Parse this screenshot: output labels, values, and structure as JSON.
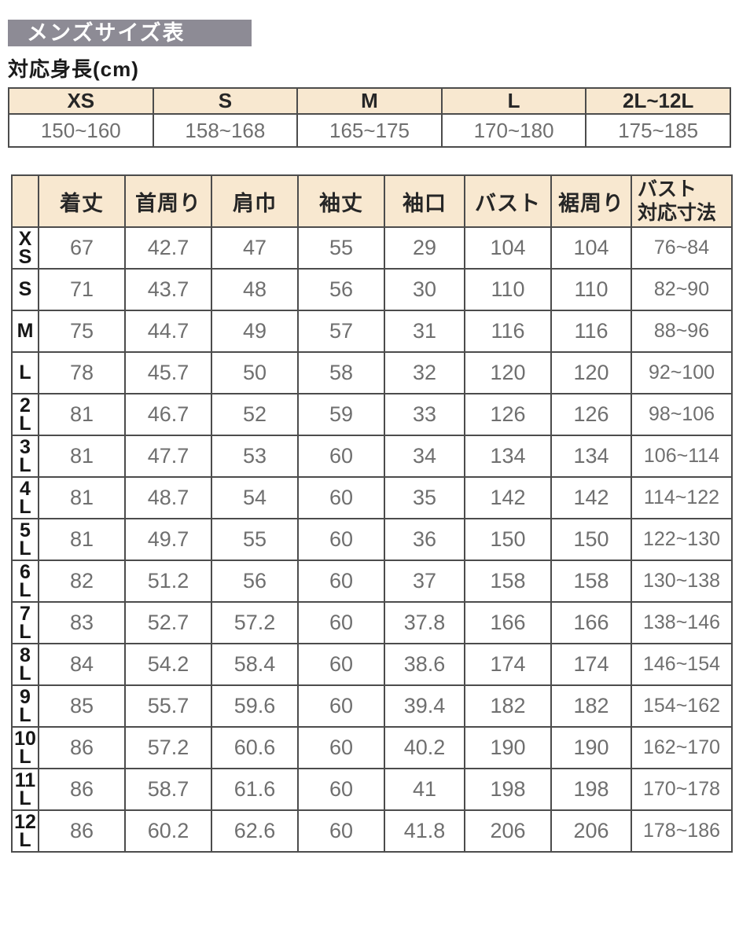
{
  "title_bar": {
    "label": "メンズサイズ表"
  },
  "height_section": {
    "label": "対応身長(cm)",
    "table": {
      "columns": [
        "XS",
        "S",
        "M",
        "L",
        "2L~12L"
      ],
      "heights": [
        "150~160",
        "158~168",
        "165~175",
        "170~180",
        "175~185"
      ]
    }
  },
  "size_table": {
    "columns": [
      "着丈",
      "首周り",
      "肩巾",
      "袖丈",
      "袖口",
      "バスト",
      "裾周り",
      "バスト\n対応寸法"
    ],
    "column_keys": [
      "body-length",
      "neck-girth",
      "shoulder-width",
      "sleeve-length",
      "cuff",
      "bust",
      "hem-girth",
      "bust-fit-range"
    ],
    "rows": [
      {
        "label": "XS",
        "label_lines": [
          "X",
          "S"
        ],
        "values": [
          "67",
          "42.7",
          "47",
          "55",
          "29",
          "104",
          "104",
          "76~84"
        ]
      },
      {
        "label": "S",
        "label_lines": [
          "S"
        ],
        "values": [
          "71",
          "43.7",
          "48",
          "56",
          "30",
          "110",
          "110",
          "82~90"
        ]
      },
      {
        "label": "M",
        "label_lines": [
          "M"
        ],
        "values": [
          "75",
          "44.7",
          "49",
          "57",
          "31",
          "116",
          "116",
          "88~96"
        ]
      },
      {
        "label": "L",
        "label_lines": [
          "L"
        ],
        "values": [
          "78",
          "45.7",
          "50",
          "58",
          "32",
          "120",
          "120",
          "92~100"
        ]
      },
      {
        "label": "2L",
        "label_lines": [
          "2",
          "L"
        ],
        "values": [
          "81",
          "46.7",
          "52",
          "59",
          "33",
          "126",
          "126",
          "98~106"
        ]
      },
      {
        "label": "3L",
        "label_lines": [
          "3",
          "L"
        ],
        "values": [
          "81",
          "47.7",
          "53",
          "60",
          "34",
          "134",
          "134",
          "106~114"
        ]
      },
      {
        "label": "4L",
        "label_lines": [
          "4",
          "L"
        ],
        "values": [
          "81",
          "48.7",
          "54",
          "60",
          "35",
          "142",
          "142",
          "114~122"
        ]
      },
      {
        "label": "5L",
        "label_lines": [
          "5",
          "L"
        ],
        "values": [
          "81",
          "49.7",
          "55",
          "60",
          "36",
          "150",
          "150",
          "122~130"
        ]
      },
      {
        "label": "6L",
        "label_lines": [
          "6",
          "L"
        ],
        "values": [
          "82",
          "51.2",
          "56",
          "60",
          "37",
          "158",
          "158",
          "130~138"
        ]
      },
      {
        "label": "7L",
        "label_lines": [
          "7",
          "L"
        ],
        "values": [
          "83",
          "52.7",
          "57.2",
          "60",
          "37.8",
          "166",
          "166",
          "138~146"
        ]
      },
      {
        "label": "8L",
        "label_lines": [
          "8",
          "L"
        ],
        "values": [
          "84",
          "54.2",
          "58.4",
          "60",
          "38.6",
          "174",
          "174",
          "146~154"
        ]
      },
      {
        "label": "9L",
        "label_lines": [
          "9",
          "L"
        ],
        "values": [
          "85",
          "55.7",
          "59.6",
          "60",
          "39.4",
          "182",
          "182",
          "154~162"
        ]
      },
      {
        "label": "10L",
        "label_lines": [
          "10",
          "L"
        ],
        "values": [
          "86",
          "57.2",
          "60.6",
          "60",
          "40.2",
          "190",
          "190",
          "162~170"
        ]
      },
      {
        "label": "11L",
        "label_lines": [
          "11",
          "L"
        ],
        "values": [
          "86",
          "58.7",
          "61.6",
          "60",
          "41",
          "198",
          "198",
          "170~178"
        ]
      },
      {
        "label": "12L",
        "label_lines": [
          "12",
          "L"
        ],
        "values": [
          "86",
          "60.2",
          "62.6",
          "60",
          "41.8",
          "206",
          "206",
          "178~186"
        ]
      }
    ]
  },
  "colors": {
    "title_bar_bg": "#8d8b95",
    "title_text": "#ffffff",
    "header_bg": "#f8e8d0",
    "border": "#4c4c4c",
    "value_text": "#6f6f6f",
    "header_text": "#262626"
  }
}
